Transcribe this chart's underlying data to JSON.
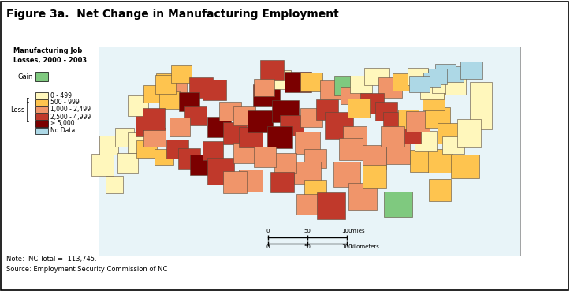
{
  "title": "Figure 3a.  Net Change in Manufacturing Employment",
  "legend_title": "Manufacturing Job\nLosses, 2000 - 2003",
  "note": "Note:  NC Total = -113,745.",
  "source": "Source: Employment Security Commission of NC",
  "colors": {
    "gain": "#7fc97f",
    "loss_0_499": "#fff7bc",
    "loss_500_999": "#fec44f",
    "loss_1000_2499": "#f0956a",
    "loss_2500_4999": "#c0392b",
    "loss_5000plus": "#7b0000",
    "no_data": "#add8e6",
    "border": "#5a4a3a",
    "background": "#ffffff",
    "figure_bg": "#f0f0e8"
  },
  "legend_labels": {
    "gain": "Gain",
    "loss_0_499": "0 - 499",
    "loss_500_999": "500 - 999",
    "loss_1000_2499": "1,000 - 2,499",
    "loss_2500_4999": "2,500 - 4,999",
    "loss_5000plus": "≥ 5,000",
    "no_data": "No Data"
  },
  "scale_bar": {
    "miles_label": "miles",
    "km_label": "kilometers",
    "tick0": 0,
    "tick50_miles": 50,
    "tick100_km": 100
  }
}
